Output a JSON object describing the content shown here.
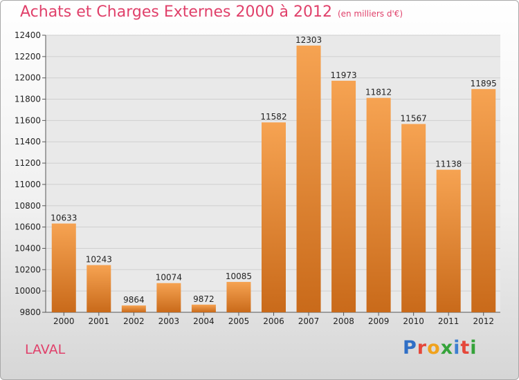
{
  "header": {
    "title": "Achats et Charges Externes 2000 à 2012",
    "subtitle": "(en milliers d'€)"
  },
  "footer": {
    "place": "LAVAL"
  },
  "logo": {
    "letters": [
      "P",
      "r",
      "o",
      "x",
      "i",
      "t",
      "i"
    ],
    "colors": [
      "#2f6fc6",
      "#e5473a",
      "#f0a21d",
      "#35a33a",
      "#3d7fd0",
      "#e5473a",
      "#35a33a"
    ]
  },
  "colors": {
    "bar_top": "#f6a352",
    "bar_bottom": "#c96a1a",
    "grid": "#cfcfcf",
    "plot_bg": "#e9e9e9"
  },
  "chart_data": {
    "type": "bar",
    "categories": [
      "2000",
      "2001",
      "2002",
      "2003",
      "2004",
      "2005",
      "2006",
      "2007",
      "2008",
      "2009",
      "2010",
      "2011",
      "2012"
    ],
    "values": [
      10633,
      10243,
      9864,
      10074,
      9872,
      10085,
      11582,
      12303,
      11973,
      11812,
      11567,
      11138,
      11895
    ],
    "ylim": [
      9800,
      12400
    ],
    "yticks": [
      9800,
      10000,
      10200,
      10400,
      10600,
      10800,
      11000,
      11200,
      11400,
      11600,
      11800,
      12000,
      12200,
      12400
    ],
    "grid": true
  }
}
